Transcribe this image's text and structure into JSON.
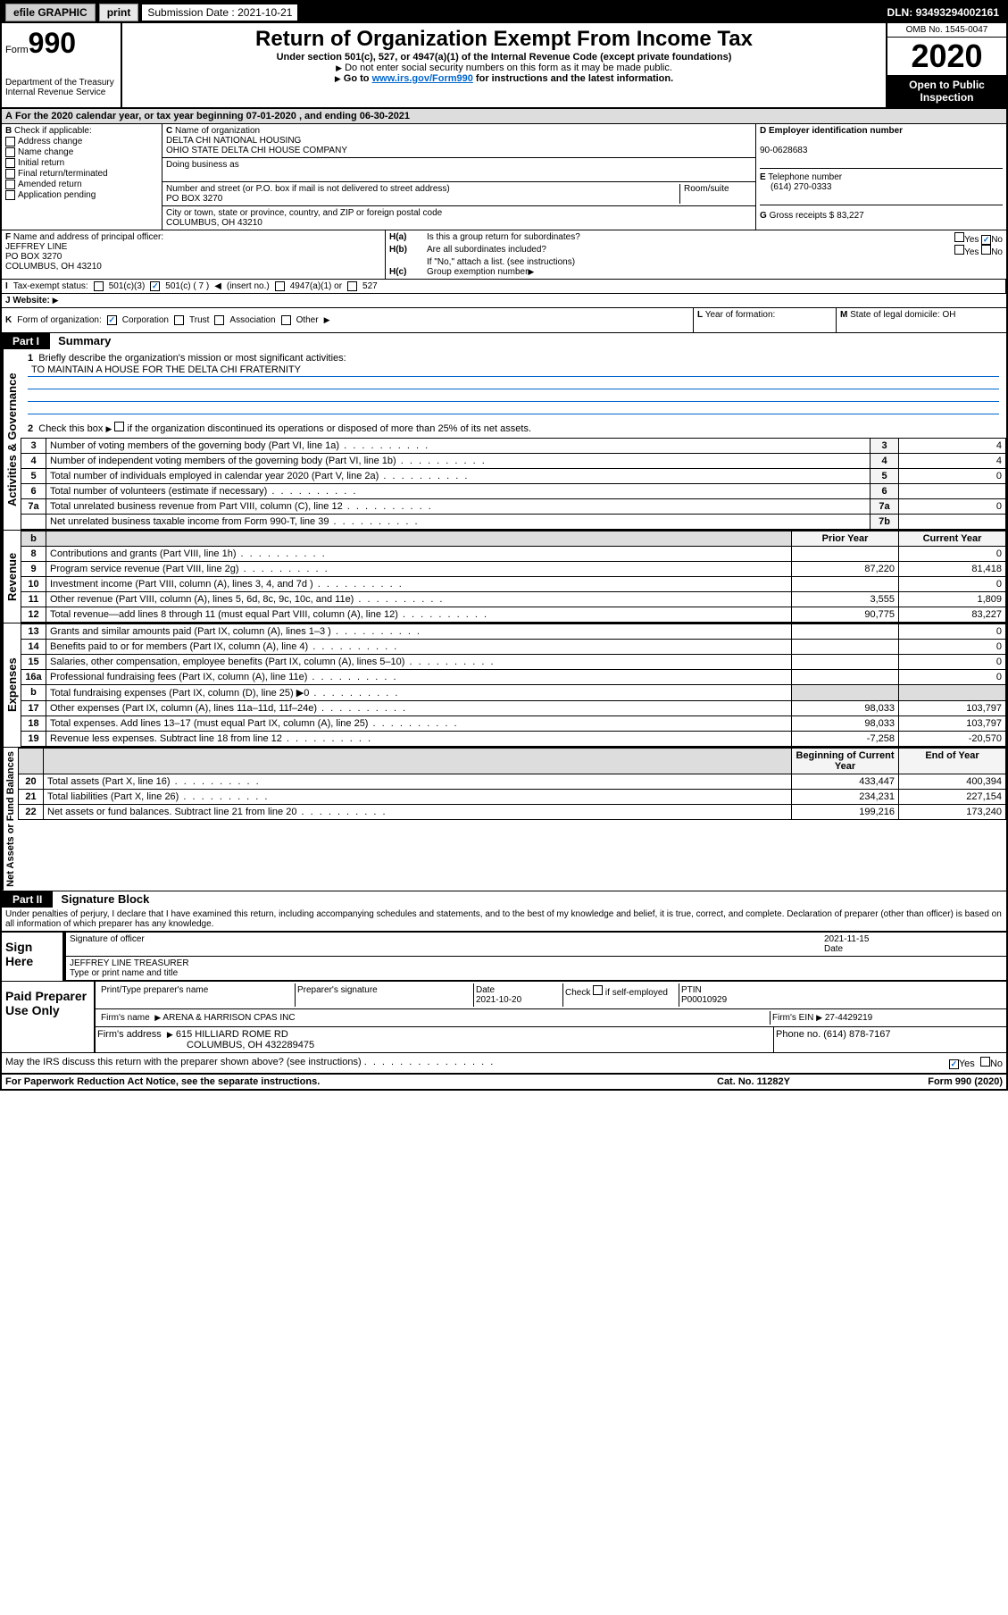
{
  "header": {
    "efile_label": "efile GRAPHIC",
    "print_btn": "print",
    "sub_label": "Submission Date :",
    "sub_date": "2021-10-21",
    "dln_label": "DLN:",
    "dln": "93493294002161"
  },
  "title_block": {
    "form_prefix": "Form",
    "form_num": "990",
    "dept": "Department of the Treasury Internal Revenue Service",
    "main_title": "Return of Organization Exempt From Income Tax",
    "subtitle": "Under section 501(c), 527, or 4947(a)(1) of the Internal Revenue Code (except private foundations)",
    "ssn_line": "Do not enter social security numbers on this form as it may be made public.",
    "goto_prefix": "Go to ",
    "goto_link": "www.irs.gov/Form990",
    "goto_suffix": " for instructions and the latest information.",
    "omb": "OMB No. 1545-0047",
    "year": "2020",
    "inspection_l1": "Open to Public",
    "inspection_l2": "Inspection"
  },
  "period": "For the 2020 calendar year, or tax year beginning 07-01-2020  , and ending 06-30-2021",
  "sec_b": {
    "header": "Check if applicable:",
    "items": [
      "Address change",
      "Name change",
      "Initial return",
      "Final return/terminated",
      "Amended return",
      "Application pending"
    ]
  },
  "sec_c": {
    "name_label": "Name of organization",
    "name1": "DELTA CHI NATIONAL HOUSING",
    "name2": "OHIO STATE DELTA CHI HOUSE COMPANY",
    "dba_label": "Doing business as",
    "street_label": "Number and street (or P.O. box if mail is not delivered to street address)",
    "room_label": "Room/suite",
    "street": "PO BOX 3270",
    "city_label": "City or town, state or province, country, and ZIP or foreign postal code",
    "city": "COLUMBUS, OH  43210"
  },
  "sec_d": {
    "ein_label": "Employer identification number",
    "ein": "90-0628683"
  },
  "sec_e": {
    "tel_label": "Telephone number",
    "tel": "(614) 270-0333"
  },
  "sec_g": {
    "label": "Gross receipts $",
    "val": "83,227"
  },
  "sec_f": {
    "label": "Name and address of principal officer:",
    "name": "JEFFREY LINE",
    "addr1": "PO BOX 3270",
    "addr2": "COLUMBUS, OH  43210"
  },
  "sec_h": {
    "a_label": "Is this a group return for subordinates?",
    "b_label": "Are all subordinates included?",
    "no_note": "If \"No,\" attach a list. (see instructions)",
    "c_label": "Group exemption number",
    "yes": "Yes",
    "no": "No"
  },
  "sec_i": {
    "label": "Tax-exempt status:",
    "o1": "501(c)(3)",
    "o2": "501(c) ( 7 )",
    "o2_hint": "(insert no.)",
    "o3": "4947(a)(1) or",
    "o4": "527"
  },
  "sec_j": {
    "label": "Website:"
  },
  "sec_k": {
    "label": "Form of organization:",
    "o1": "Corporation",
    "o2": "Trust",
    "o3": "Association",
    "o4": "Other"
  },
  "sec_l": {
    "label": "Year of formation:"
  },
  "sec_m": {
    "label": "State of legal domicile:",
    "val": "OH"
  },
  "part1": {
    "hdr": "Part I",
    "title": "Summary",
    "side_ag": "Activities & Governance",
    "side_rev": "Revenue",
    "side_exp": "Expenses",
    "side_net": "Net Assets or Fund Balances",
    "l1_label": "Briefly describe the organization's mission or most significant activities:",
    "l1_val": "TO MAINTAIN A HOUSE FOR THE DELTA CHI FRATERNITY",
    "l2_label": "Check this box",
    "l2_suffix": "if the organization discontinued its operations or disposed of more than 25% of its net assets.",
    "rows_ag": [
      {
        "n": "3",
        "t": "Number of voting members of the governing body (Part VI, line 1a)",
        "b": "3",
        "v": "4"
      },
      {
        "n": "4",
        "t": "Number of independent voting members of the governing body (Part VI, line 1b)",
        "b": "4",
        "v": "4"
      },
      {
        "n": "5",
        "t": "Total number of individuals employed in calendar year 2020 (Part V, line 2a)",
        "b": "5",
        "v": "0"
      },
      {
        "n": "6",
        "t": "Total number of volunteers (estimate if necessary)",
        "b": "6",
        "v": ""
      },
      {
        "n": "7a",
        "t": "Total unrelated business revenue from Part VIII, column (C), line 12",
        "b": "7a",
        "v": "0"
      },
      {
        "n": "",
        "t": "Net unrelated business taxable income from Form 990-T, line 39",
        "b": "7b",
        "v": ""
      }
    ],
    "col_prior": "Prior Year",
    "col_curr": "Current Year",
    "rows_rev": [
      {
        "n": "8",
        "t": "Contributions and grants (Part VIII, line 1h)",
        "p": "",
        "c": "0"
      },
      {
        "n": "9",
        "t": "Program service revenue (Part VIII, line 2g)",
        "p": "87,220",
        "c": "81,418"
      },
      {
        "n": "10",
        "t": "Investment income (Part VIII, column (A), lines 3, 4, and 7d )",
        "p": "",
        "c": "0"
      },
      {
        "n": "11",
        "t": "Other revenue (Part VIII, column (A), lines 5, 6d, 8c, 9c, 10c, and 11e)",
        "p": "3,555",
        "c": "1,809"
      },
      {
        "n": "12",
        "t": "Total revenue—add lines 8 through 11 (must equal Part VIII, column (A), line 12)",
        "p": "90,775",
        "c": "83,227"
      }
    ],
    "rows_exp": [
      {
        "n": "13",
        "t": "Grants and similar amounts paid (Part IX, column (A), lines 1–3 )",
        "p": "",
        "c": "0"
      },
      {
        "n": "14",
        "t": "Benefits paid to or for members (Part IX, column (A), line 4)",
        "p": "",
        "c": "0"
      },
      {
        "n": "15",
        "t": "Salaries, other compensation, employee benefits (Part IX, column (A), lines 5–10)",
        "p": "",
        "c": "0"
      },
      {
        "n": "16a",
        "t": "Professional fundraising fees (Part IX, column (A), line 11e)",
        "p": "",
        "c": "0"
      },
      {
        "n": "b",
        "t": "Total fundraising expenses (Part IX, column (D), line 25) ▶0",
        "p": "—",
        "c": "—"
      },
      {
        "n": "17",
        "t": "Other expenses (Part IX, column (A), lines 11a–11d, 11f–24e)",
        "p": "98,033",
        "c": "103,797"
      },
      {
        "n": "18",
        "t": "Total expenses. Add lines 13–17 (must equal Part IX, column (A), line 25)",
        "p": "98,033",
        "c": "103,797"
      },
      {
        "n": "19",
        "t": "Revenue less expenses. Subtract line 18 from line 12",
        "p": "-7,258",
        "c": "-20,570"
      }
    ],
    "col_beg": "Beginning of Current Year",
    "col_end": "End of Year",
    "rows_net": [
      {
        "n": "20",
        "t": "Total assets (Part X, line 16)",
        "p": "433,447",
        "c": "400,394"
      },
      {
        "n": "21",
        "t": "Total liabilities (Part X, line 26)",
        "p": "234,231",
        "c": "227,154"
      },
      {
        "n": "22",
        "t": "Net assets or fund balances. Subtract line 21 from line 20",
        "p": "199,216",
        "c": "173,240"
      }
    ]
  },
  "part2": {
    "hdr": "Part II",
    "title": "Signature Block",
    "perjury": "Under penalties of perjury, I declare that I have examined this return, including accompanying schedules and statements, and to the best of my knowledge and belief, it is true, correct, and complete. Declaration of preparer (other than officer) is based on all information of which preparer has any knowledge."
  },
  "sign_here": {
    "label": "Sign Here",
    "sig_officer": "Signature of officer",
    "date_label": "Date",
    "date_val": "2021-11-15",
    "officer_name": "JEFFREY LINE  TREASURER",
    "type_label": "Type or print name and title"
  },
  "paid_prep": {
    "label": "Paid Preparer Use Only",
    "print_name_label": "Print/Type preparer's name",
    "prep_sig_label": "Preparer's signature",
    "date_label": "Date",
    "date_val": "2021-10-20",
    "check_label": "Check",
    "self_emp": "if self-employed",
    "ptin_label": "PTIN",
    "ptin_val": "P00010929",
    "firm_name_label": "Firm's name",
    "firm_name": "ARENA & HARRISON CPAS INC",
    "firm_ein_label": "Firm's EIN",
    "firm_ein": "27-4429219",
    "firm_addr_label": "Firm's address",
    "firm_addr1": "615 HILLIARD ROME RD",
    "firm_addr2": "COLUMBUS, OH  432289475",
    "phone_label": "Phone no.",
    "phone": "(614) 878-7167"
  },
  "discuss": {
    "label": "May the IRS discuss this return with the preparer shown above? (see instructions)",
    "yes": "Yes",
    "no": "No"
  },
  "footer": {
    "pra": "For Paperwork Reduction Act Notice, see the separate instructions.",
    "cat": "Cat. No. 11282Y",
    "form": "Form",
    "form_num": "990",
    "form_year": "(2020)"
  },
  "markers": {
    "A": "A",
    "B": "B",
    "C": "C",
    "D": "D",
    "E": "E",
    "F": "F",
    "G": "G",
    "H_a": "H(a)",
    "H_b": "H(b)",
    "H_c": "H(c)",
    "I": "I",
    "J": "J",
    "K": "K",
    "L": "L",
    "M": "M",
    "b_num": "b"
  }
}
